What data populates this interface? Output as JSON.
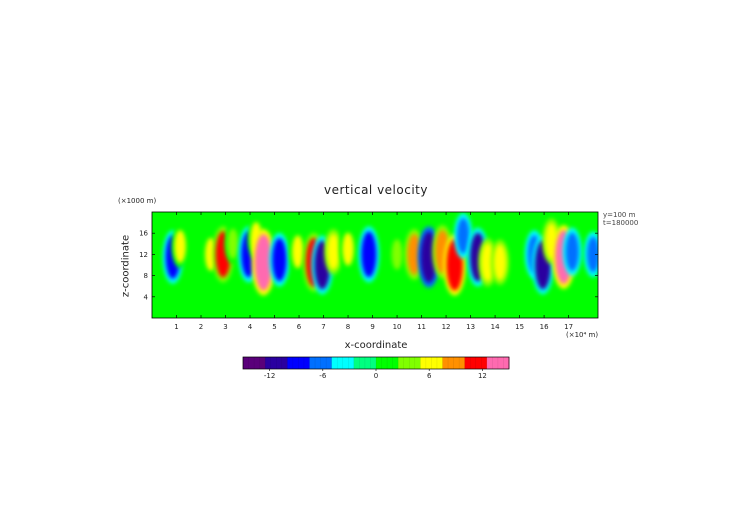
{
  "chart_data": {
    "type": "heatmap",
    "title": "vertical velocity",
    "xlabel": "x-coordinate",
    "ylabel": "z-coordinate",
    "x_unit": "(×10⁴ m)",
    "z_unit": "(×1000 m)",
    "annotations": [
      "y=100 m",
      "t=180000"
    ],
    "xlim": [
      0,
      18.2
    ],
    "ylim": [
      0,
      20
    ],
    "x_ticks": [
      1,
      2,
      3,
      4,
      5,
      6,
      7,
      8,
      9,
      10,
      11,
      12,
      13,
      14,
      15,
      16,
      17
    ],
    "y_ticks": [
      4,
      8,
      12,
      16
    ],
    "colorbar": {
      "min": -15,
      "max": 15,
      "ticks": [
        -12,
        -6,
        0,
        6,
        12
      ],
      "colors": [
        "#5a007a",
        "#2a00a0",
        "#0000ff",
        "#0070ff",
        "#00ffff",
        "#00ff80",
        "#00ff00",
        "#80ff00",
        "#ffff00",
        "#ff9000",
        "#ff0000",
        "#ff6ab0"
      ]
    },
    "background_value": 0,
    "features": [
      {
        "x": 0.85,
        "z": 11.5,
        "value": -9
      },
      {
        "x": 1.15,
        "z": 13.5,
        "value": 5
      },
      {
        "x": 2.4,
        "z": 12.0,
        "value": 5
      },
      {
        "x": 2.9,
        "z": 12.0,
        "value": 10
      },
      {
        "x": 3.3,
        "z": 14.0,
        "value": 4
      },
      {
        "x": 3.95,
        "z": 12.0,
        "value": -10
      },
      {
        "x": 4.25,
        "z": 15.0,
        "value": 5
      },
      {
        "x": 4.55,
        "z": 10.5,
        "value": 14
      },
      {
        "x": 5.2,
        "z": 11.0,
        "value": -9
      },
      {
        "x": 5.95,
        "z": 12.5,
        "value": 5
      },
      {
        "x": 6.6,
        "z": 10.5,
        "value": 11
      },
      {
        "x": 6.95,
        "z": 10.0,
        "value": -11
      },
      {
        "x": 7.4,
        "z": 12.5,
        "value": 6
      },
      {
        "x": 8.0,
        "z": 13.0,
        "value": 5
      },
      {
        "x": 8.85,
        "z": 12.0,
        "value": -10
      },
      {
        "x": 10.0,
        "z": 12.0,
        "value": 4
      },
      {
        "x": 10.7,
        "z": 12.0,
        "value": 8
      },
      {
        "x": 11.3,
        "z": 11.5,
        "value": -12
      },
      {
        "x": 11.85,
        "z": 12.5,
        "value": 9
      },
      {
        "x": 12.35,
        "z": 10.0,
        "value": 12
      },
      {
        "x": 12.7,
        "z": 15.5,
        "value": -6
      },
      {
        "x": 13.3,
        "z": 11.5,
        "value": -11
      },
      {
        "x": 13.7,
        "z": 10.5,
        "value": 7
      },
      {
        "x": 14.2,
        "z": 10.5,
        "value": 6
      },
      {
        "x": 15.6,
        "z": 12.0,
        "value": -7
      },
      {
        "x": 15.95,
        "z": 10.0,
        "value": -11
      },
      {
        "x": 16.3,
        "z": 14.5,
        "value": 6
      },
      {
        "x": 16.8,
        "z": 11.5,
        "value": 13
      },
      {
        "x": 17.15,
        "z": 12.5,
        "value": -7
      },
      {
        "x": 18.0,
        "z": 12.0,
        "value": -6
      }
    ]
  }
}
